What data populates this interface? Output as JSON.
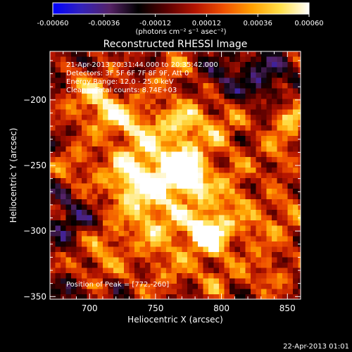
{
  "colorbar": {
    "ticks": [
      "-0.00060",
      "-0.00036",
      "-0.00012",
      "0.00012",
      "0.00036",
      "0.00060"
    ],
    "tick_values": [
      -0.0006,
      -0.00036,
      -0.00012,
      0.00012,
      0.00036,
      0.0006
    ],
    "range": [
      -0.0006,
      0.0006
    ],
    "units_label": "(photons cm⁻² s⁻¹ asec⁻²)",
    "colormap_stops": [
      "#0000ff",
      "#3322bb",
      "#552266",
      "#000000",
      "#5a0000",
      "#b41400",
      "#f05000",
      "#ffa000",
      "#ffe04a",
      "#ffffff"
    ]
  },
  "plot": {
    "title": "Reconstructed RHESSI Image",
    "info_lines": [
      "21-Apr-2013 20:31:44.000 to 20:35:42.000",
      "Detectors: 3F 5F 6F 7F 8F 9F, Att 0",
      "Energy Range: 12.0 - 25.0 keV",
      "Clean    Total counts: 8.74E+03"
    ],
    "peak_label": "Position of Peak = [772,-260]",
    "footer_date": "22-Apr-2013 01:01"
  },
  "chart_data": {
    "type": "heatmap",
    "title": "Reconstructed RHESSI Image",
    "xlabel": "Heliocentric X (arcsec)",
    "ylabel": "Heliocentric Y (arcsec)",
    "xlim": [
      670,
      860
    ],
    "ylim": [
      -352,
      -163
    ],
    "x_ticks": [
      700,
      750,
      800,
      850
    ],
    "y_ticks": [
      -200,
      -250,
      -300,
      -350
    ],
    "peak": [
      772,
      -260
    ],
    "sources": [
      {
        "x": 771,
        "y": -257,
        "amp": 1.0,
        "sigma": 10
      },
      {
        "x": 762,
        "y": -250,
        "amp": 0.6,
        "sigma": 18
      },
      {
        "x": 790,
        "y": -302,
        "amp": 0.75,
        "sigma": 10
      },
      {
        "x": 778,
        "y": -296,
        "amp": 0.45,
        "sigma": 16
      },
      {
        "x": 728,
        "y": -258,
        "amp": 0.6,
        "sigma": 14
      },
      {
        "x": 740,
        "y": -280,
        "amp": 0.45,
        "sigma": 14
      },
      {
        "x": 735,
        "y": -222,
        "amp": 0.45,
        "sigma": 14
      },
      {
        "x": 712,
        "y": -208,
        "amp": 0.55,
        "sigma": 12
      },
      {
        "x": 695,
        "y": -190,
        "amp": 0.35,
        "sigma": 14
      },
      {
        "x": 772,
        "y": -215,
        "amp": 0.45,
        "sigma": 14
      },
      {
        "x": 760,
        "y": -178,
        "amp": 0.3,
        "sigma": 12
      },
      {
        "x": 800,
        "y": -220,
        "amp": 0.35,
        "sigma": 12
      },
      {
        "x": 808,
        "y": -270,
        "amp": 0.45,
        "sigma": 14
      },
      {
        "x": 850,
        "y": -215,
        "amp": 0.65,
        "sigma": 9
      },
      {
        "x": 840,
        "y": -245,
        "amp": 0.3,
        "sigma": 12
      },
      {
        "x": 845,
        "y": -290,
        "amp": 0.35,
        "sigma": 12
      },
      {
        "x": 833,
        "y": -330,
        "amp": 0.3,
        "sigma": 12
      },
      {
        "x": 795,
        "y": -335,
        "amp": 0.3,
        "sigma": 12
      },
      {
        "x": 755,
        "y": -330,
        "amp": 0.3,
        "sigma": 14
      },
      {
        "x": 715,
        "y": -310,
        "amp": 0.35,
        "sigma": 12
      },
      {
        "x": 700,
        "y": -330,
        "amp": 0.3,
        "sigma": 12
      },
      {
        "x": 690,
        "y": -250,
        "amp": 0.3,
        "sigma": 12
      },
      {
        "x": 820,
        "y": -300,
        "amp": 0.3,
        "sigma": 10
      },
      {
        "x": 748,
        "y": -300,
        "amp": 0.3,
        "sigma": 10
      },
      {
        "x": 685,
        "y": -290,
        "amp": -0.35,
        "sigma": 12
      },
      {
        "x": 830,
        "y": -180,
        "amp": -0.35,
        "sigma": 14
      },
      {
        "x": 800,
        "y": -185,
        "amp": -0.25,
        "sigma": 12
      },
      {
        "x": 690,
        "y": -345,
        "amp": -0.3,
        "sigma": 10
      },
      {
        "x": 680,
        "y": -170,
        "amp": -0.25,
        "sigma": 10
      },
      {
        "x": 825,
        "y": -265,
        "amp": -0.2,
        "sigma": 8
      }
    ]
  }
}
